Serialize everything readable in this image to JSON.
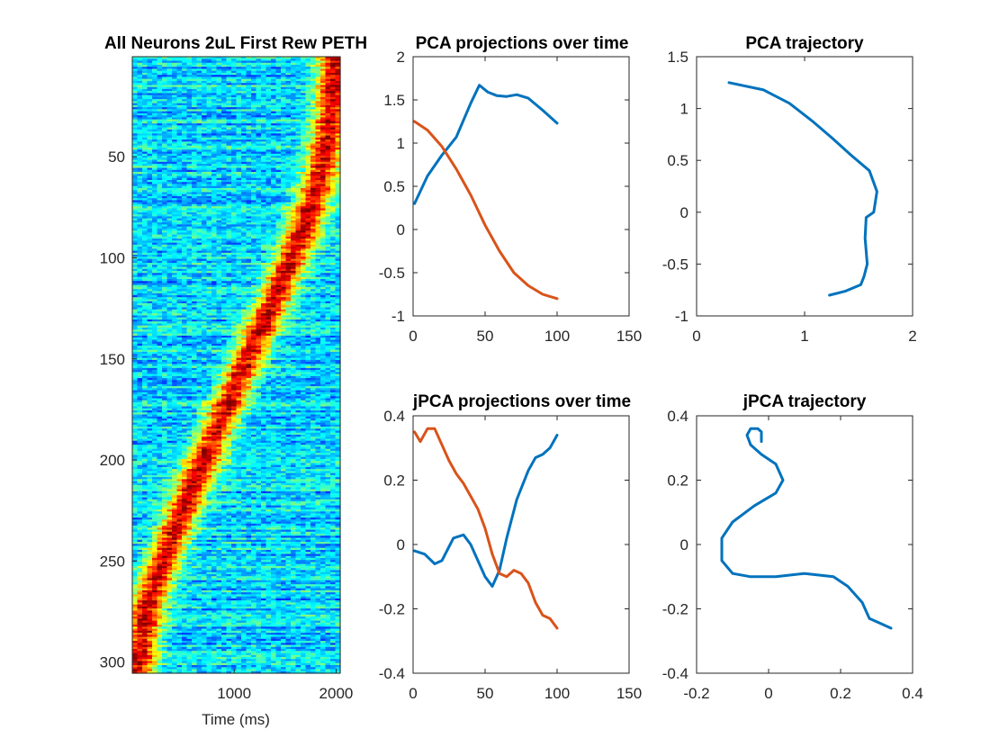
{
  "colors": {
    "series1": "#0072bd",
    "series2": "#d95319",
    "axis": "#262626",
    "heatmap_colormap": "jet"
  },
  "chart_data": [
    {
      "id": "heatmap",
      "type": "heatmap",
      "title": "All Neurons 2uL First Rew PETH",
      "xlabel": "Time (ms)",
      "ylabel": "",
      "xlim": [
        1,
        2040
      ],
      "ylim": [
        0.5,
        305.5
      ],
      "y_reversed": true,
      "rows": 305,
      "xticks": [
        1000,
        2000
      ],
      "yticks": [
        50,
        100,
        150,
        200,
        250,
        300
      ],
      "ridge": {
        "rows": [
          1,
          30,
          60,
          90,
          120,
          150,
          180,
          210,
          240,
          270,
          305
        ],
        "time_ms": [
          2000,
          1950,
          1850,
          1650,
          1400,
          1130,
          870,
          620,
          380,
          160,
          40
        ]
      },
      "colormap": "jet",
      "grid": false
    },
    {
      "id": "pca-time",
      "type": "line",
      "title": "PCA projections over time",
      "xlabel": "",
      "ylabel": "",
      "xlim": [
        0,
        150
      ],
      "ylim": [
        -1,
        2
      ],
      "xticks": [
        0,
        50,
        100,
        150
      ],
      "yticks": [
        -1,
        -0.5,
        0,
        0.5,
        1,
        1.5,
        2
      ],
      "series": [
        {
          "color": "#0072bd",
          "x": [
            1,
            10,
            20,
            30,
            40,
            46,
            52,
            58,
            65,
            72,
            80,
            90,
            100
          ],
          "y": [
            0.3,
            0.62,
            0.86,
            1.07,
            1.46,
            1.67,
            1.59,
            1.55,
            1.54,
            1.56,
            1.52,
            1.38,
            1.23
          ]
        },
        {
          "color": "#d95319",
          "x": [
            1,
            10,
            20,
            30,
            40,
            50,
            60,
            70,
            80,
            90,
            100
          ],
          "y": [
            1.25,
            1.15,
            0.96,
            0.7,
            0.4,
            0.05,
            -0.25,
            -0.5,
            -0.65,
            -0.75,
            -0.8
          ]
        }
      ],
      "grid": false
    },
    {
      "id": "pca-traj",
      "type": "line",
      "title": "PCA trajectory",
      "xlabel": "",
      "ylabel": "",
      "xlim": [
        0,
        2
      ],
      "ylim": [
        -1,
        1.5
      ],
      "xticks": [
        0,
        1,
        2
      ],
      "yticks": [
        -1,
        -0.5,
        0,
        0.5,
        1,
        1.5
      ],
      "series": [
        {
          "color": "#0072bd",
          "x": [
            0.3,
            0.62,
            0.86,
            1.07,
            1.25,
            1.43,
            1.6,
            1.67,
            1.64,
            1.57,
            1.56,
            1.58,
            1.55,
            1.52,
            1.38,
            1.23
          ],
          "y": [
            1.25,
            1.18,
            1.05,
            0.88,
            0.72,
            0.55,
            0.4,
            0.2,
            0.0,
            -0.05,
            -0.25,
            -0.5,
            -0.62,
            -0.7,
            -0.76,
            -0.8
          ]
        }
      ],
      "grid": false
    },
    {
      "id": "jpca-time",
      "type": "line",
      "title": "jPCA projections over time",
      "xlabel": "",
      "ylabel": "",
      "xlim": [
        0,
        150
      ],
      "ylim": [
        -0.4,
        0.4
      ],
      "xticks": [
        0,
        50,
        100,
        150
      ],
      "yticks": [
        -0.4,
        -0.2,
        0,
        0.2,
        0.4
      ],
      "series": [
        {
          "color": "#0072bd",
          "x": [
            1,
            8,
            15,
            20,
            28,
            35,
            40,
            45,
            50,
            55,
            60,
            65,
            72,
            80,
            85,
            90,
            95,
            100
          ],
          "y": [
            -0.02,
            -0.03,
            -0.06,
            -0.05,
            0.02,
            0.03,
            0.0,
            -0.05,
            -0.1,
            -0.13,
            -0.08,
            0.02,
            0.14,
            0.23,
            0.27,
            0.28,
            0.3,
            0.34
          ]
        },
        {
          "color": "#d95319",
          "x": [
            1,
            5,
            10,
            15,
            20,
            25,
            30,
            35,
            40,
            45,
            50,
            55,
            60,
            65,
            70,
            75,
            80,
            85,
            90,
            95,
            100
          ],
          "y": [
            0.35,
            0.32,
            0.36,
            0.36,
            0.31,
            0.26,
            0.22,
            0.19,
            0.15,
            0.11,
            0.05,
            -0.03,
            -0.09,
            -0.1,
            -0.08,
            -0.09,
            -0.12,
            -0.18,
            -0.22,
            -0.23,
            -0.26
          ]
        }
      ],
      "grid": false
    },
    {
      "id": "jpca-traj",
      "type": "line",
      "title": "jPCA trajectory",
      "xlabel": "",
      "ylabel": "",
      "xlim": [
        -0.2,
        0.4
      ],
      "ylim": [
        -0.4,
        0.4
      ],
      "xticks": [
        -0.2,
        0,
        0.2,
        0.4
      ],
      "yticks": [
        -0.4,
        -0.2,
        0,
        0.2,
        0.4
      ],
      "series": [
        {
          "color": "#0072bd",
          "x": [
            -0.02,
            -0.02,
            -0.03,
            -0.05,
            -0.06,
            -0.05,
            -0.02,
            0.02,
            0.04,
            0.02,
            -0.04,
            -0.1,
            -0.13,
            -0.13,
            -0.1,
            -0.05,
            0.02,
            0.1,
            0.18,
            0.22,
            0.26,
            0.28,
            0.3,
            0.34
          ],
          "y": [
            0.32,
            0.35,
            0.36,
            0.36,
            0.34,
            0.31,
            0.28,
            0.25,
            0.2,
            0.16,
            0.12,
            0.07,
            0.02,
            -0.05,
            -0.09,
            -0.1,
            -0.1,
            -0.09,
            -0.1,
            -0.13,
            -0.18,
            -0.23,
            -0.24,
            -0.26
          ]
        }
      ],
      "grid": false
    }
  ]
}
